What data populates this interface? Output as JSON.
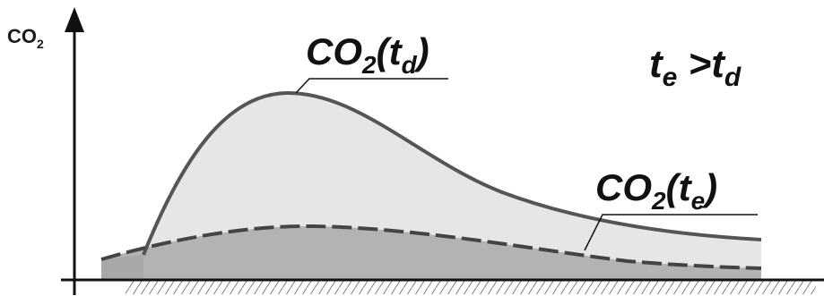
{
  "y_axis": {
    "label_main": "CO",
    "label_sub": "2"
  },
  "curves": {
    "td": {
      "label_main": "CO",
      "label_sub": "2",
      "label_open": "(t",
      "label_sub2": "d",
      "label_close": ")",
      "fill_color": "#e6e6e6",
      "line_color": "#555555"
    },
    "te": {
      "label_main": "CO",
      "label_sub": "2",
      "label_open": "(t",
      "label_sub2": "e",
      "label_close": ")",
      "fill_color": "#b3b3b3",
      "line_color": "#444444"
    }
  },
  "condition": {
    "t1": "t",
    "t1_sub": "e",
    "op": " >t",
    "t2_sub": "d"
  }
}
